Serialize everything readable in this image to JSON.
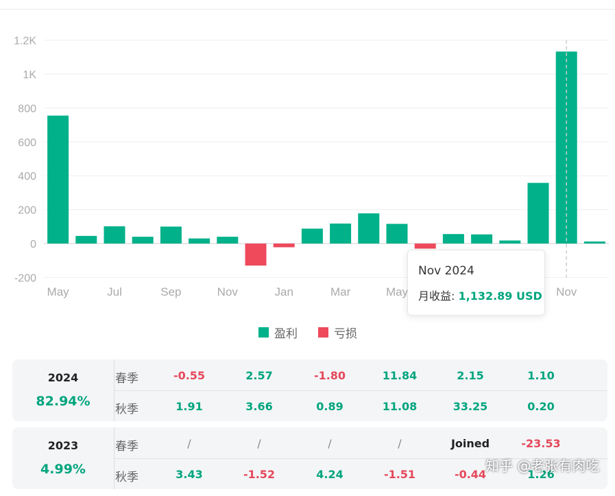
{
  "chart_data": {
    "type": "bar",
    "categories": [
      "May",
      "Jun",
      "Jul",
      "Aug",
      "Sep",
      "Oct",
      "Nov",
      "Dec",
      "Jan",
      "Feb",
      "Mar",
      "Apr",
      "May",
      "Jun",
      "Jul",
      "Aug",
      "Sep",
      "Oct",
      "Nov",
      "Dec"
    ],
    "tick_labels": [
      "May",
      "",
      "Jul",
      "",
      "Sep",
      "",
      "Nov",
      "",
      "Jan",
      "",
      "Mar",
      "",
      "May",
      "",
      "",
      "",
      "",
      "",
      "Nov",
      ""
    ],
    "values": [
      755,
      45,
      102,
      40,
      100,
      30,
      40,
      -130,
      -22,
      88,
      118,
      178,
      116,
      -30,
      56,
      54,
      18,
      358,
      1132.89,
      12
    ],
    "y_ticks": [
      -200,
      0,
      200,
      400,
      600,
      800,
      1000,
      1200
    ],
    "y_tick_labels": [
      "-200",
      "0",
      "200",
      "400",
      "600",
      "800",
      "1K",
      "1.2K"
    ],
    "ylim": [
      -200,
      1200
    ],
    "grid": true,
    "colors": {
      "profit": "#00b18a",
      "loss": "#ee4a5c"
    },
    "legend": [
      {
        "label": "盈利",
        "color": "#00b18a"
      },
      {
        "label": "亏损",
        "color": "#ee4a5c"
      }
    ],
    "legend_position": "bottom",
    "highlight_index": 18,
    "tooltip": {
      "title": "Nov 2024",
      "label": "月收益: ",
      "value": "1,132.89 USD"
    }
  },
  "table": [
    {
      "year": "2024",
      "total": "82.94%",
      "rows": [
        {
          "season": "春季",
          "cells": [
            {
              "text": "-0.55",
              "tone": "neg"
            },
            {
              "text": "2.57",
              "tone": "pos"
            },
            {
              "text": "-1.80",
              "tone": "neg"
            },
            {
              "text": "11.84",
              "tone": "pos"
            },
            {
              "text": "2.15",
              "tone": "pos"
            },
            {
              "text": "1.10",
              "tone": "pos"
            }
          ]
        },
        {
          "season": "秋季",
          "cells": [
            {
              "text": "1.91",
              "tone": "pos"
            },
            {
              "text": "3.66",
              "tone": "pos"
            },
            {
              "text": "0.89",
              "tone": "pos"
            },
            {
              "text": "11.08",
              "tone": "pos"
            },
            {
              "text": "33.25",
              "tone": "pos"
            },
            {
              "text": "0.20",
              "tone": "pos"
            }
          ]
        }
      ]
    },
    {
      "year": "2023",
      "total": "4.99%",
      "rows": [
        {
          "season": "春季",
          "cells": [
            {
              "text": "/",
              "tone": "slash"
            },
            {
              "text": "/",
              "tone": "slash"
            },
            {
              "text": "/",
              "tone": "slash"
            },
            {
              "text": "/",
              "tone": "slash"
            },
            {
              "text": "Joined",
              "tone": "joined"
            },
            {
              "text": "-23.53",
              "tone": "neg"
            }
          ]
        },
        {
          "season": "秋季",
          "cells": [
            {
              "text": "3.43",
              "tone": "pos"
            },
            {
              "text": "-1.52",
              "tone": "neg"
            },
            {
              "text": "4.24",
              "tone": "pos"
            },
            {
              "text": "-1.51",
              "tone": "neg"
            },
            {
              "text": "-0.44",
              "tone": "neg"
            },
            {
              "text": "1.26",
              "tone": "pos"
            }
          ]
        }
      ]
    }
  ],
  "watermark": "知乎 @老张有肉吃"
}
